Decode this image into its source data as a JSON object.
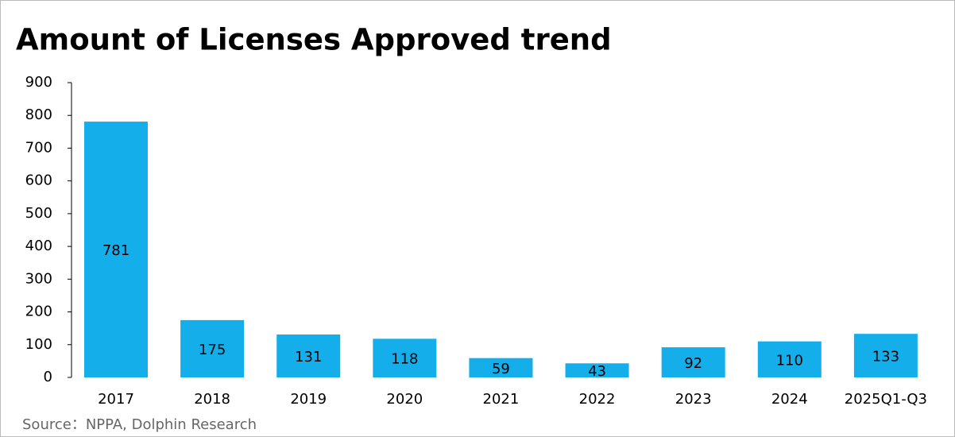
{
  "chart_data": {
    "type": "bar",
    "title": "Amount of Licenses Approved trend",
    "categories": [
      "2017",
      "2018",
      "2019",
      "2020",
      "2021",
      "2022",
      "2023",
      "2024",
      "2025Q1-Q3"
    ],
    "values": [
      781,
      175,
      131,
      118,
      59,
      43,
      92,
      110,
      133
    ],
    "color": "#14aeea",
    "ylim": [
      0,
      900
    ],
    "yticks": [
      0,
      100,
      200,
      300,
      400,
      500,
      600,
      700,
      800,
      900
    ],
    "source": "Source：NPPA, Dolphin Research"
  }
}
